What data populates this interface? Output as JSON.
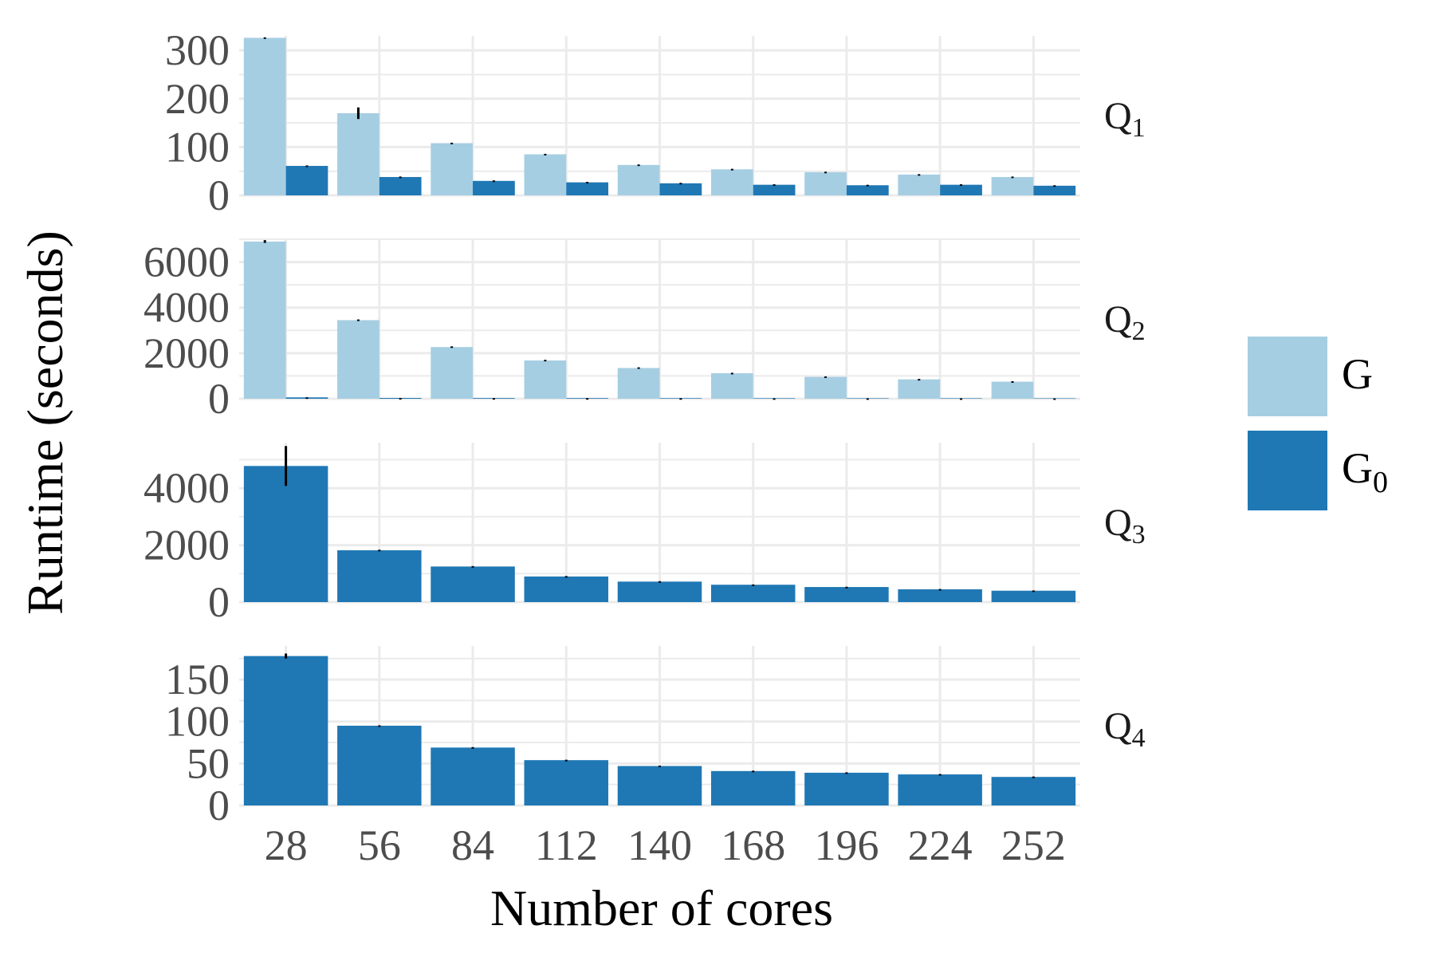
{
  "chart_data": {
    "type": "bar",
    "xlabel": "Number of cores",
    "ylabel": "Runtime (seconds)",
    "categories": [
      "28",
      "56",
      "84",
      "112",
      "140",
      "168",
      "196",
      "224",
      "252"
    ],
    "grid": true,
    "legend_position": "right",
    "legend": [
      {
        "key": "G",
        "label": "G",
        "sub": "",
        "color": "#a6cee3"
      },
      {
        "key": "G0",
        "label": "G",
        "sub": "0",
        "color": "#1f78b4"
      }
    ],
    "panels": [
      {
        "label": "Q",
        "label_sub": "1",
        "ylim": [
          0,
          330
        ],
        "yticks": [
          0,
          100,
          200,
          300
        ],
        "series": [
          {
            "key": "G",
            "values": [
              326,
              170,
              108,
              85,
              63,
              54,
              48,
              43,
              38
            ],
            "errors": [
              1,
              12,
              1,
              1,
              1,
              1,
              1,
              1,
              1
            ]
          },
          {
            "key": "G0",
            "values": [
              61,
              38,
              30,
              27,
              25,
              22,
              21,
              22,
              20
            ],
            "errors": [
              1,
              1,
              1,
              1,
              1,
              1,
              1,
              1,
              1
            ]
          }
        ]
      },
      {
        "label": "Q",
        "label_sub": "2",
        "ylim": [
          0,
          7000
        ],
        "yticks": [
          0,
          2000,
          4000,
          6000
        ],
        "series": [
          {
            "key": "G",
            "values": [
              6900,
              3450,
              2270,
              1680,
              1350,
              1120,
              960,
              850,
              750
            ],
            "errors": [
              60,
              30,
              30,
              30,
              30,
              20,
              20,
              20,
              20
            ]
          },
          {
            "key": "G0",
            "values": [
              60,
              35,
              30,
              28,
              25,
              22,
              20,
              20,
              18
            ],
            "errors": [
              5,
              2,
              2,
              2,
              2,
              2,
              2,
              2,
              2
            ]
          }
        ]
      },
      {
        "label": "Q",
        "label_sub": "3",
        "ylim": [
          0,
          5600
        ],
        "yticks": [
          0,
          2000,
          4000
        ],
        "series": [
          {
            "key": "G0",
            "values": [
              4780,
              1820,
              1250,
              900,
              720,
              610,
              530,
              450,
              400
            ],
            "errors": [
              700,
              20,
              15,
              15,
              15,
              10,
              10,
              10,
              10
            ]
          }
        ]
      },
      {
        "label": "Q",
        "label_sub": "4",
        "ylim": [
          0,
          190
        ],
        "yticks": [
          0,
          50,
          100,
          150
        ],
        "series": [
          {
            "key": "G0",
            "values": [
              178,
              95,
              69,
              54,
              47,
              41,
              39,
              37,
              34
            ],
            "errors": [
              3,
              0.5,
              0.5,
              0.5,
              0.5,
              0.5,
              0.5,
              0.5,
              0.5
            ]
          }
        ]
      }
    ]
  }
}
